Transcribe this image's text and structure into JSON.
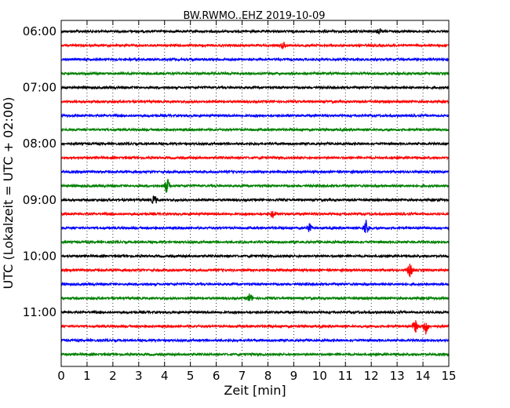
{
  "chart_data": {
    "type": "line",
    "title": "BW.RWMO..EHZ 2019-10-09",
    "xlabel": "Zeit  [min]",
    "ylabel": "UTC (Lokalzeit = UTC + 02:00)",
    "xlim": [
      0,
      15
    ],
    "x_ticks": [
      "0",
      "1",
      "2",
      "3",
      "4",
      "5",
      "6",
      "7",
      "8",
      "9",
      "10",
      "11",
      "12",
      "13",
      "14",
      "15"
    ],
    "y_tick_labels": [
      {
        "row": 0,
        "label": "06:00"
      },
      {
        "row": 4,
        "label": "07:00"
      },
      {
        "row": 8,
        "label": "08:00"
      },
      {
        "row": 12,
        "label": "09:00"
      },
      {
        "row": 16,
        "label": "10:00"
      },
      {
        "row": 20,
        "label": "11:00"
      }
    ],
    "grid": "vertical dotted at each minute",
    "colors": [
      "#000000",
      "#ff0000",
      "#0000ff",
      "#008000"
    ],
    "traces": [
      {
        "start": "06:00",
        "color": "#000000",
        "events": [
          {
            "minute": 12.3,
            "amplitude": 0.3
          }
        ]
      },
      {
        "start": "06:15",
        "color": "#ff0000",
        "events": [
          {
            "minute": 8.6,
            "amplitude": 0.4
          }
        ]
      },
      {
        "start": "06:30",
        "color": "#0000ff",
        "events": []
      },
      {
        "start": "06:45",
        "color": "#008000",
        "events": []
      },
      {
        "start": "07:00",
        "color": "#000000",
        "events": []
      },
      {
        "start": "07:15",
        "color": "#ff0000",
        "events": []
      },
      {
        "start": "07:30",
        "color": "#0000ff",
        "events": []
      },
      {
        "start": "07:45",
        "color": "#008000",
        "events": []
      },
      {
        "start": "08:00",
        "color": "#000000",
        "events": []
      },
      {
        "start": "08:15",
        "color": "#ff0000",
        "events": []
      },
      {
        "start": "08:30",
        "color": "#0000ff",
        "events": []
      },
      {
        "start": "08:45",
        "color": "#008000",
        "events": [
          {
            "minute": 4.1,
            "amplitude": 1.0
          }
        ]
      },
      {
        "start": "09:00",
        "color": "#000000",
        "events": [
          {
            "minute": 3.6,
            "amplitude": 0.6
          }
        ]
      },
      {
        "start": "09:15",
        "color": "#ff0000",
        "events": [
          {
            "minute": 8.2,
            "amplitude": 0.5
          }
        ]
      },
      {
        "start": "09:30",
        "color": "#0000ff",
        "events": [
          {
            "minute": 9.6,
            "amplitude": 0.6
          },
          {
            "minute": 11.8,
            "amplitude": 1.1
          }
        ]
      },
      {
        "start": "09:45",
        "color": "#008000",
        "events": []
      },
      {
        "start": "10:00",
        "color": "#000000",
        "events": []
      },
      {
        "start": "10:15",
        "color": "#ff0000",
        "events": [
          {
            "minute": 13.5,
            "amplitude": 1.0
          }
        ]
      },
      {
        "start": "10:30",
        "color": "#0000ff",
        "events": []
      },
      {
        "start": "10:45",
        "color": "#008000",
        "events": [
          {
            "minute": 7.3,
            "amplitude": 0.6
          }
        ]
      },
      {
        "start": "11:00",
        "color": "#000000",
        "events": []
      },
      {
        "start": "11:15",
        "color": "#ff0000",
        "events": [
          {
            "minute": 13.7,
            "amplitude": 0.8
          },
          {
            "minute": 14.1,
            "amplitude": 1.0
          }
        ]
      },
      {
        "start": "11:30",
        "color": "#0000ff",
        "events": []
      },
      {
        "start": "11:45",
        "color": "#008000",
        "events": []
      }
    ]
  }
}
